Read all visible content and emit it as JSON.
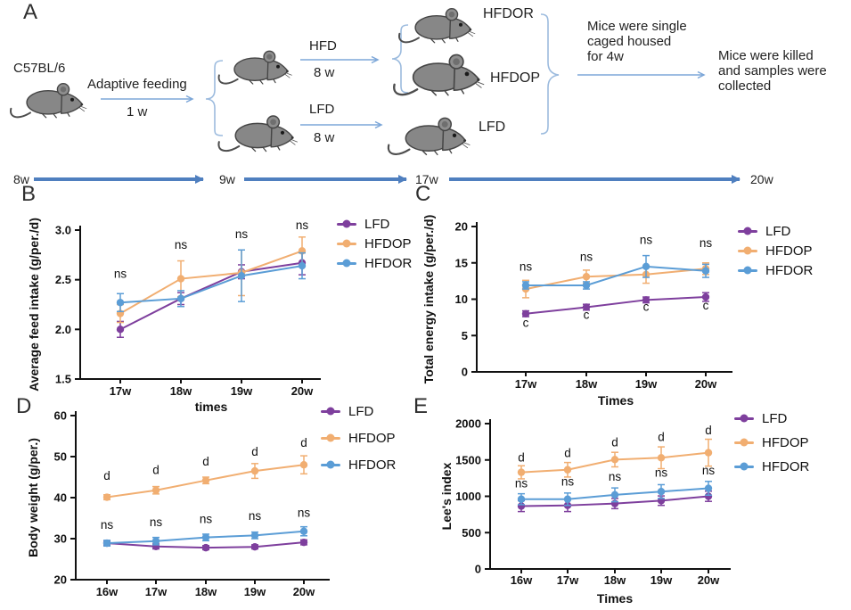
{
  "panels": {
    "a": "A",
    "b": "B",
    "c": "C",
    "d": "D",
    "e": "E"
  },
  "diagram": {
    "strain": "C57BL/6",
    "adaptive_label": "Adaptive feeding",
    "adaptive_duration": "1 w",
    "hfd": {
      "label": "HFD",
      "duration": "8 w"
    },
    "lfd": {
      "label": "LFD",
      "duration": "8 w"
    },
    "groups": [
      "HFDOR",
      "HFDOP",
      "LFD"
    ],
    "cage_note": {
      "lines": [
        "Mice were single",
        "caged housed",
        "for 4w"
      ]
    },
    "kill_note": {
      "lines": [
        "Mice were killed",
        "and samples were",
        "collected"
      ]
    },
    "timeline": [
      "8w",
      "9w",
      "17w",
      "20w"
    ],
    "timeline_arrow_color": "#4f7fbf",
    "light_arrow_color": "#7da7d8",
    "brace_color": "#9cbbde",
    "mouse_color": "#878787"
  },
  "chart_data": [
    {
      "id": "B",
      "type": "line",
      "ylabel": "Average feed intake (g/per./d)",
      "xlabel": "times",
      "ylim": [
        1.5,
        3.0
      ],
      "yticks": [
        {
          "v": 1.5,
          "t": "1.5"
        },
        {
          "v": 2.0,
          "t": "2.0"
        },
        {
          "v": 2.5,
          "t": "2.5"
        },
        {
          "v": 3.0,
          "t": "3.0"
        }
      ],
      "categories": [
        "17w",
        "18w",
        "19w",
        "20w"
      ],
      "series": [
        {
          "name": "LFD",
          "color": "#7e3f9d",
          "values": [
            2.0,
            2.31,
            2.58,
            2.67
          ],
          "errors": [
            0.08,
            0.06,
            0.07,
            0.12
          ]
        },
        {
          "name": "HFDOP",
          "color": "#f1ae71",
          "values": [
            2.16,
            2.51,
            2.57,
            2.79
          ],
          "errors": [
            0.09,
            0.18,
            0.23,
            0.14
          ]
        },
        {
          "name": "HFDOR",
          "color": "#5b9dd6",
          "values": [
            2.27,
            2.31,
            2.54,
            2.64
          ],
          "errors": [
            0.09,
            0.08,
            0.26,
            0.13
          ]
        }
      ],
      "annotations": [
        {
          "t": "ns",
          "cat": 0,
          "y": 2.52
        },
        {
          "t": "ns",
          "cat": 1,
          "y": 2.81
        },
        {
          "t": "ns",
          "cat": 2,
          "y": 2.92
        },
        {
          "t": "ns",
          "cat": 3,
          "y": 3.01
        }
      ],
      "legend_position": "right"
    },
    {
      "id": "C",
      "type": "line",
      "ylabel": "Total energy intake (g/per./d)",
      "xlabel": "Times",
      "ylim": [
        0,
        20
      ],
      "yticks": [
        {
          "v": 0,
          "t": "0"
        },
        {
          "v": 5,
          "t": "5"
        },
        {
          "v": 10,
          "t": "10"
        },
        {
          "v": 15,
          "t": "15"
        },
        {
          "v": 20,
          "t": "20"
        }
      ],
      "categories": [
        "17w",
        "18w",
        "19w",
        "20w"
      ],
      "series": [
        {
          "name": "LFD",
          "color": "#7e3f9d",
          "values": [
            8.0,
            8.9,
            9.9,
            10.3
          ],
          "errors": [
            0.4,
            0.4,
            0.4,
            0.6
          ]
        },
        {
          "name": "HFDOP",
          "color": "#f1ae71",
          "values": [
            11.4,
            13.1,
            13.4,
            14.2
          ],
          "errors": [
            1.2,
            0.9,
            1.2,
            0.8
          ]
        },
        {
          "name": "HFDOR",
          "color": "#5b9dd6",
          "values": [
            11.9,
            11.9,
            14.5,
            13.9
          ],
          "errors": [
            0.5,
            0.5,
            1.5,
            0.9
          ]
        }
      ],
      "annotations": [
        {
          "t": "ns",
          "cat": 0,
          "y": 13.9
        },
        {
          "t": "ns",
          "cat": 1,
          "y": 15.3
        },
        {
          "t": "ns",
          "cat": 2,
          "y": 17.6
        },
        {
          "t": "ns",
          "cat": 3,
          "y": 17.2
        },
        {
          "t": "c",
          "cat": 0,
          "y": 6.2
        },
        {
          "t": "c",
          "cat": 1,
          "y": 7.3
        },
        {
          "t": "c",
          "cat": 2,
          "y": 8.4
        },
        {
          "t": "c",
          "cat": 3,
          "y": 8.6
        }
      ],
      "legend_position": "right"
    },
    {
      "id": "D",
      "type": "line",
      "ylabel": "Body weight (g/per.)",
      "xlabel": "",
      "ylim": [
        20,
        60
      ],
      "yticks": [
        {
          "v": 20,
          "t": "20"
        },
        {
          "v": 30,
          "t": "30"
        },
        {
          "v": 40,
          "t": "40"
        },
        {
          "v": 50,
          "t": "50"
        },
        {
          "v": 60,
          "t": "60"
        }
      ],
      "categories": [
        "16w",
        "17w",
        "18w",
        "19w",
        "20w"
      ],
      "series": [
        {
          "name": "LFD",
          "color": "#7e3f9d",
          "values": [
            28.9,
            28.1,
            27.8,
            28.0,
            29.1
          ],
          "errors": [
            0.5,
            0.6,
            0.5,
            0.5,
            0.6
          ]
        },
        {
          "name": "HFDOP",
          "color": "#f1ae71",
          "values": [
            40.1,
            41.8,
            44.2,
            46.5,
            48.0
          ],
          "errors": [
            0.6,
            0.9,
            0.8,
            1.8,
            2.2
          ]
        },
        {
          "name": "HFDOR",
          "color": "#5b9dd6",
          "values": [
            28.9,
            29.4,
            30.3,
            30.8,
            31.8
          ],
          "errors": [
            0.7,
            0.9,
            0.8,
            0.8,
            1.1
          ]
        }
      ],
      "annotations": [
        {
          "t": "d",
          "cat": 0,
          "y": 44.3
        },
        {
          "t": "d",
          "cat": 1,
          "y": 45.8
        },
        {
          "t": "d",
          "cat": 2,
          "y": 47.8
        },
        {
          "t": "d",
          "cat": 3,
          "y": 50.2
        },
        {
          "t": "d",
          "cat": 4,
          "y": 52.4
        },
        {
          "t": "ns",
          "cat": 0,
          "y": 32.4
        },
        {
          "t": "ns",
          "cat": 1,
          "y": 33.0
        },
        {
          "t": "ns",
          "cat": 2,
          "y": 33.8
        },
        {
          "t": "ns",
          "cat": 3,
          "y": 34.6
        },
        {
          "t": "ns",
          "cat": 4,
          "y": 35.3
        }
      ],
      "legend_position": "right"
    },
    {
      "id": "E",
      "type": "line",
      "ylabel": "Lee's index",
      "xlabel": "Times",
      "ylim": [
        0,
        2000
      ],
      "yticks": [
        {
          "v": 0,
          "t": "0"
        },
        {
          "v": 500,
          "t": "500"
        },
        {
          "v": 1000,
          "t": "1000"
        },
        {
          "v": 1500,
          "t": "1500"
        },
        {
          "v": 2000,
          "t": "2000"
        }
      ],
      "categories": [
        "16w",
        "17w",
        "18w",
        "19w",
        "20w"
      ],
      "series": [
        {
          "name": "LFD",
          "color": "#7e3f9d",
          "values": [
            865,
            875,
            900,
            940,
            1000
          ],
          "errors": [
            75,
            85,
            70,
            65,
            70
          ]
        },
        {
          "name": "HFDOP",
          "color": "#f1ae71",
          "values": [
            1330,
            1365,
            1505,
            1530,
            1600
          ],
          "errors": [
            90,
            100,
            100,
            150,
            185
          ]
        },
        {
          "name": "HFDOR",
          "color": "#5b9dd6",
          "values": [
            960,
            960,
            1020,
            1065,
            1110
          ],
          "errors": [
            75,
            85,
            95,
            95,
            95
          ]
        }
      ],
      "annotations": [
        {
          "t": "d",
          "cat": 0,
          "y": 1480
        },
        {
          "t": "d",
          "cat": 1,
          "y": 1540
        },
        {
          "t": "d",
          "cat": 2,
          "y": 1690
        },
        {
          "t": "d",
          "cat": 3,
          "y": 1760
        },
        {
          "t": "d",
          "cat": 4,
          "y": 1855
        },
        {
          "t": "ns",
          "cat": 0,
          "y": 1120
        },
        {
          "t": "ns",
          "cat": 1,
          "y": 1150
        },
        {
          "t": "ns",
          "cat": 2,
          "y": 1215
        },
        {
          "t": "ns",
          "cat": 3,
          "y": 1270
        },
        {
          "t": "ns",
          "cat": 4,
          "y": 1300
        }
      ],
      "legend_position": "right"
    }
  ]
}
